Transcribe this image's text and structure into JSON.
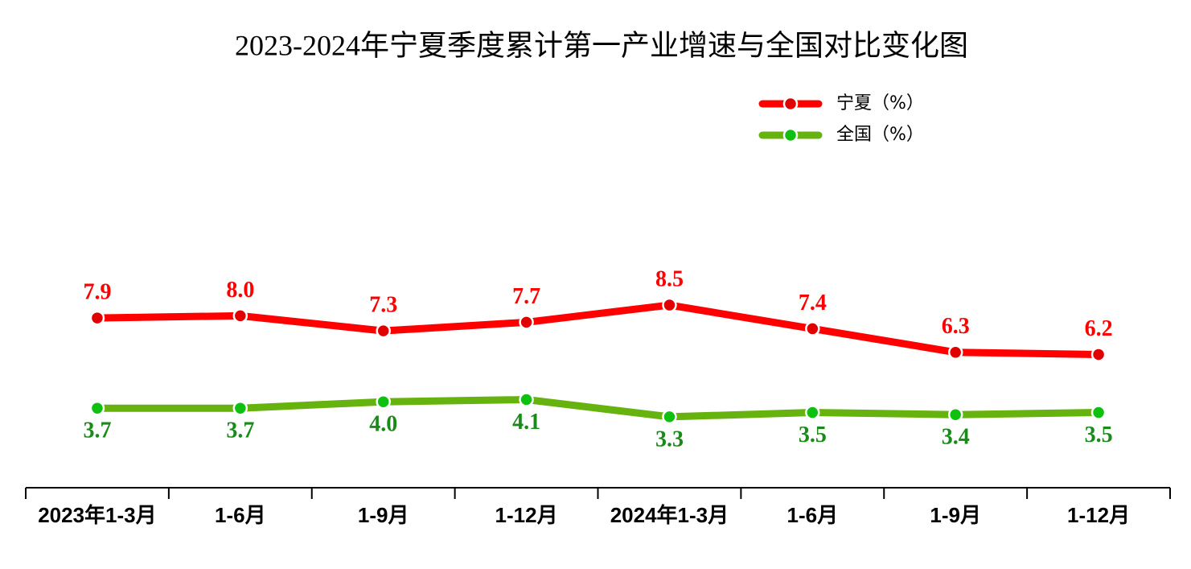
{
  "chart_data": {
    "type": "line",
    "title": "2023-2024年宁夏季度累计第一产业增速与全国对比变化图",
    "categories": [
      "2023年1-3月",
      "1-6月",
      "1-9月",
      "1-12月",
      "2024年1-3月",
      "1-6月",
      "1-9月",
      "1-12月"
    ],
    "series": [
      {
        "name": "宁夏（%）",
        "color": "#ff0000",
        "marker_color": "#e00000",
        "label_color": "#ff0000",
        "label_position": "above",
        "values": [
          7.9,
          8.0,
          7.3,
          7.7,
          8.5,
          7.4,
          6.3,
          6.2
        ],
        "value_labels": [
          "7.9",
          "8.0",
          "7.3",
          "7.7",
          "8.5",
          "7.4",
          "6.3",
          "6.2"
        ]
      },
      {
        "name": "全国（%）",
        "color": "#66b20e",
        "marker_color": "#10c010",
        "label_color": "#1a8a1a",
        "label_position": "below",
        "values": [
          3.7,
          3.7,
          4.0,
          4.1,
          3.3,
          3.5,
          3.4,
          3.5
        ],
        "value_labels": [
          "3.7",
          "3.7",
          "4.0",
          "4.1",
          "3.3",
          "3.5",
          "3.4",
          "3.5"
        ]
      }
    ],
    "ylim": [
      0,
      10
    ],
    "legend": "upper right"
  }
}
